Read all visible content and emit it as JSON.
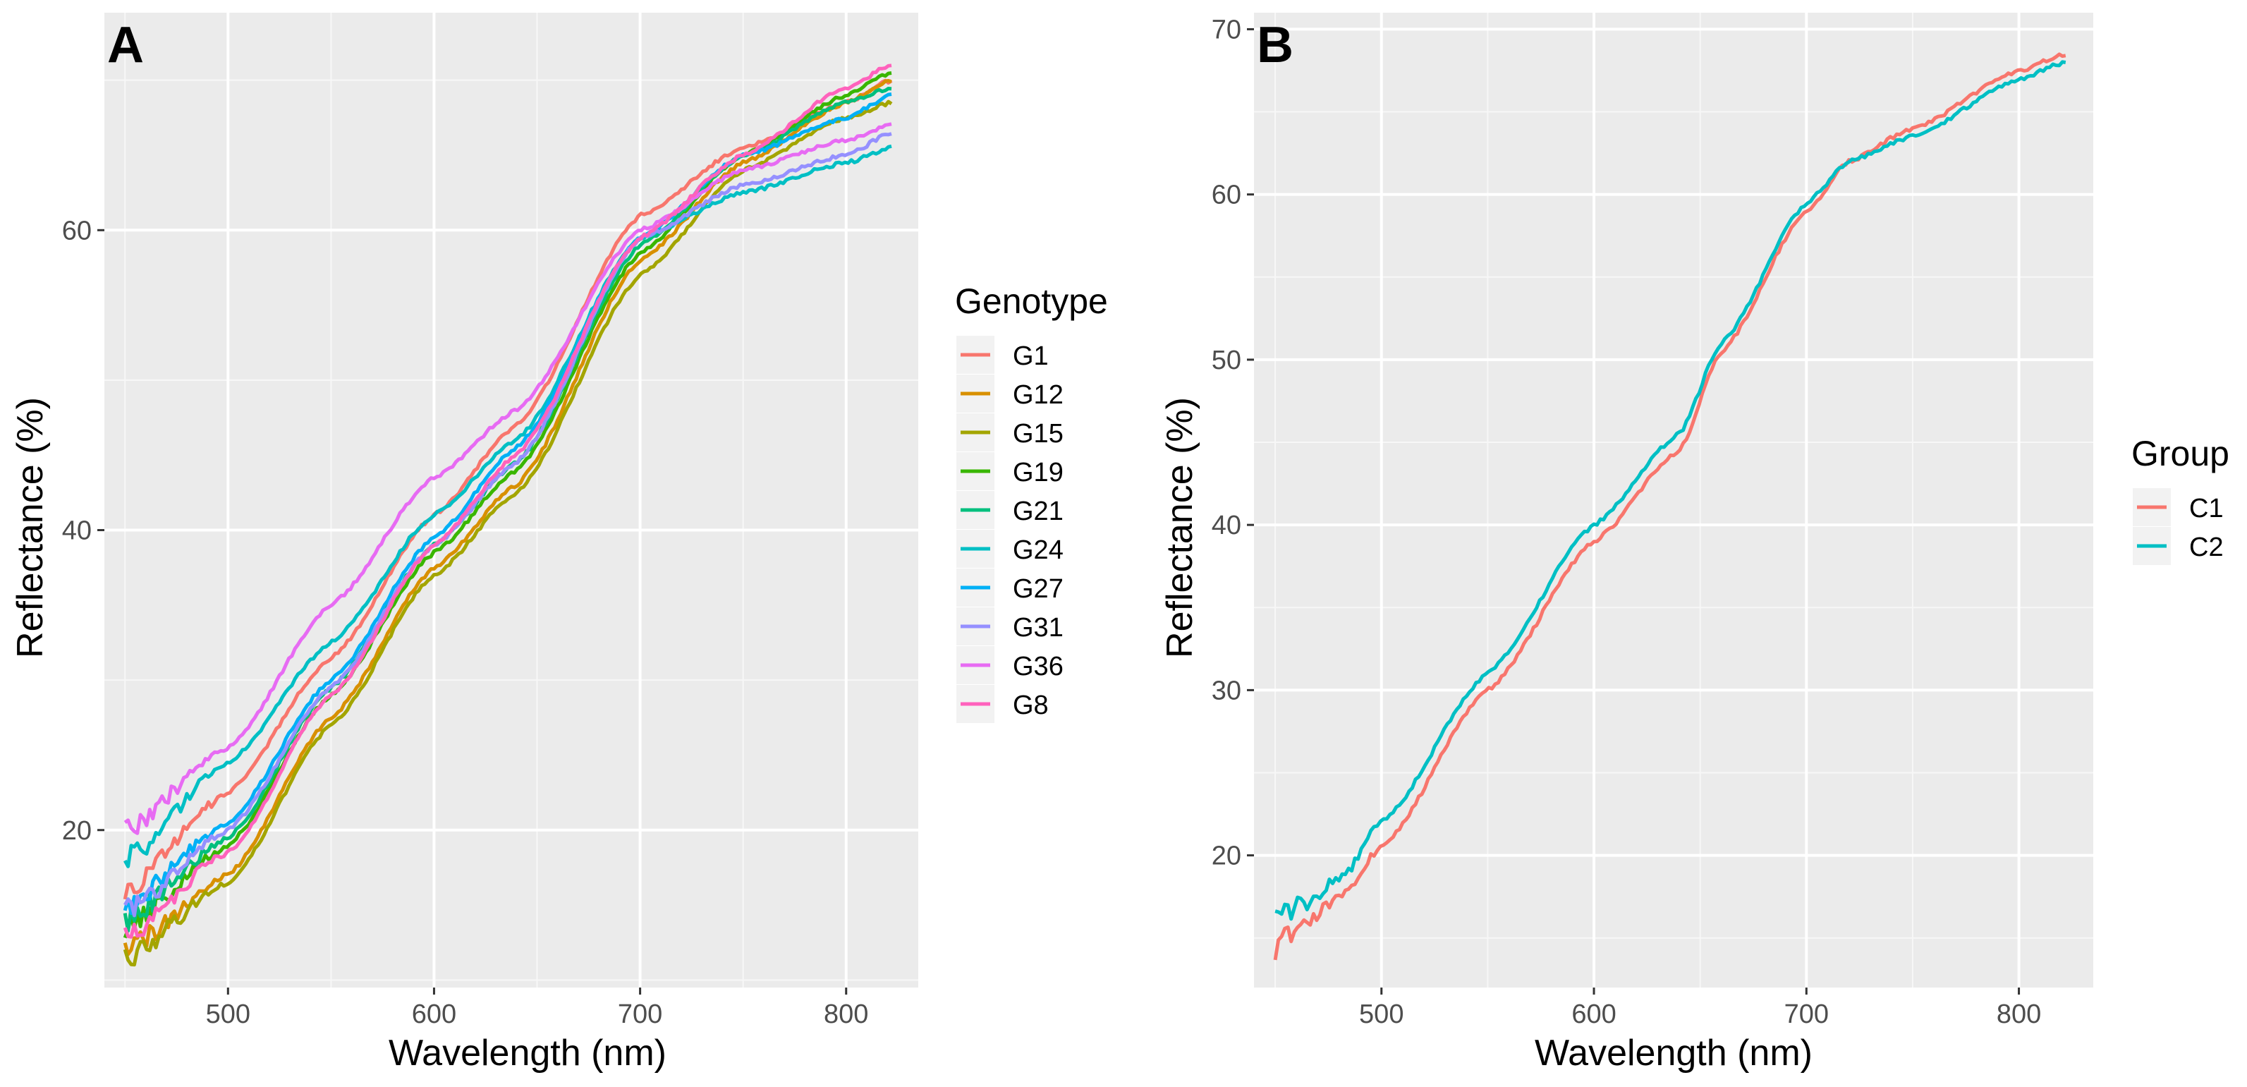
{
  "chart_data": [
    {
      "type": "line",
      "panel": "A",
      "xlabel": "Wavelength (nm)",
      "ylabel": "Reflectance (%)",
      "xlim": [
        440,
        835
      ],
      "ylim": [
        9.5,
        74.5
      ],
      "xticks": [
        500,
        600,
        700,
        800
      ],
      "yticks": [
        20,
        40,
        60
      ],
      "grid": true,
      "legend_title": "Genotype",
      "legend_position": "right",
      "series": [
        {
          "name": "G1",
          "color": "#F8766D",
          "x": [
            450,
            500,
            550,
            600,
            640,
            700,
            750,
            800,
            822
          ],
          "y": [
            16,
            22.5,
            31.5,
            41,
            47,
            61,
            65.5,
            68.5,
            70
          ]
        },
        {
          "name": "G12",
          "color": "#D89000",
          "x": [
            450,
            500,
            550,
            600,
            640,
            700,
            750,
            800,
            822
          ],
          "y": [
            12,
            17,
            27.5,
            37.5,
            43,
            58,
            64.5,
            68.5,
            70
          ]
        },
        {
          "name": "G15",
          "color": "#A3A500",
          "x": [
            450,
            500,
            550,
            600,
            640,
            700,
            750,
            800,
            822
          ],
          "y": [
            11.5,
            16.5,
            27,
            37,
            42.5,
            57,
            64,
            67.5,
            68.5
          ]
        },
        {
          "name": "G19",
          "color": "#39B600",
          "x": [
            450,
            500,
            550,
            600,
            640,
            700,
            750,
            800,
            822
          ],
          "y": [
            13.5,
            19,
            29,
            38.5,
            44,
            58.5,
            65,
            69,
            70.5
          ]
        },
        {
          "name": "G21",
          "color": "#00BF7D",
          "x": [
            450,
            500,
            550,
            600,
            640,
            700,
            750,
            800,
            822
          ],
          "y": [
            14,
            19.5,
            29.5,
            39,
            44.5,
            59,
            65,
            68.5,
            69.5
          ]
        },
        {
          "name": "G24",
          "color": "#00BFC4",
          "x": [
            450,
            500,
            550,
            600,
            640,
            700,
            750,
            800,
            822
          ],
          "y": [
            18,
            24.5,
            32.5,
            41,
            46,
            59.5,
            62.5,
            64.5,
            65.5
          ]
        },
        {
          "name": "G27",
          "color": "#00B0F6",
          "x": [
            450,
            500,
            550,
            600,
            640,
            700,
            750,
            800,
            822
          ],
          "y": [
            15,
            20.5,
            30,
            39.5,
            45.5,
            59.5,
            65,
            67.5,
            69
          ]
        },
        {
          "name": "G31",
          "color": "#9590FF",
          "x": [
            450,
            500,
            550,
            600,
            640,
            700,
            750,
            800,
            822
          ],
          "y": [
            14.5,
            20,
            29.5,
            39,
            44.5,
            59.5,
            63,
            65,
            66.5
          ]
        },
        {
          "name": "G36",
          "color": "#E76BF3",
          "x": [
            450,
            500,
            550,
            600,
            640,
            700,
            750,
            800,
            822
          ],
          "y": [
            20,
            25.5,
            35,
            43.5,
            48,
            60,
            64,
            66,
            67
          ]
        },
        {
          "name": "G8",
          "color": "#FF62BC",
          "x": [
            450,
            500,
            550,
            600,
            640,
            700,
            750,
            800,
            822
          ],
          "y": [
            13,
            18.5,
            29,
            39,
            45,
            59.5,
            65,
            69.5,
            71
          ]
        }
      ]
    },
    {
      "type": "line",
      "panel": "B",
      "xlabel": "Wavelength (nm)",
      "ylabel": "Reflectance (%)",
      "xlim": [
        440,
        835
      ],
      "ylim": [
        12,
        71
      ],
      "xticks": [
        500,
        600,
        700,
        800
      ],
      "yticks": [
        20,
        30,
        40,
        50,
        60,
        70
      ],
      "grid": true,
      "legend_title": "Group",
      "legend_position": "right",
      "series": [
        {
          "name": "C1",
          "color": "#F8766D",
          "x": [
            450,
            480,
            500,
            550,
            600,
            640,
            660,
            700,
            720,
            750,
            800,
            822
          ],
          "y": [
            14.5,
            17.5,
            20.5,
            30,
            39,
            44.5,
            50.5,
            59,
            62,
            64,
            67.5,
            68.5
          ]
        },
        {
          "name": "C2",
          "color": "#00BFC4",
          "x": [
            450,
            480,
            500,
            550,
            600,
            640,
            660,
            700,
            720,
            750,
            800,
            822
          ],
          "y": [
            16,
            18.5,
            22,
            31,
            40,
            45.5,
            51,
            59.5,
            62,
            63.5,
            67,
            68
          ]
        }
      ]
    }
  ]
}
